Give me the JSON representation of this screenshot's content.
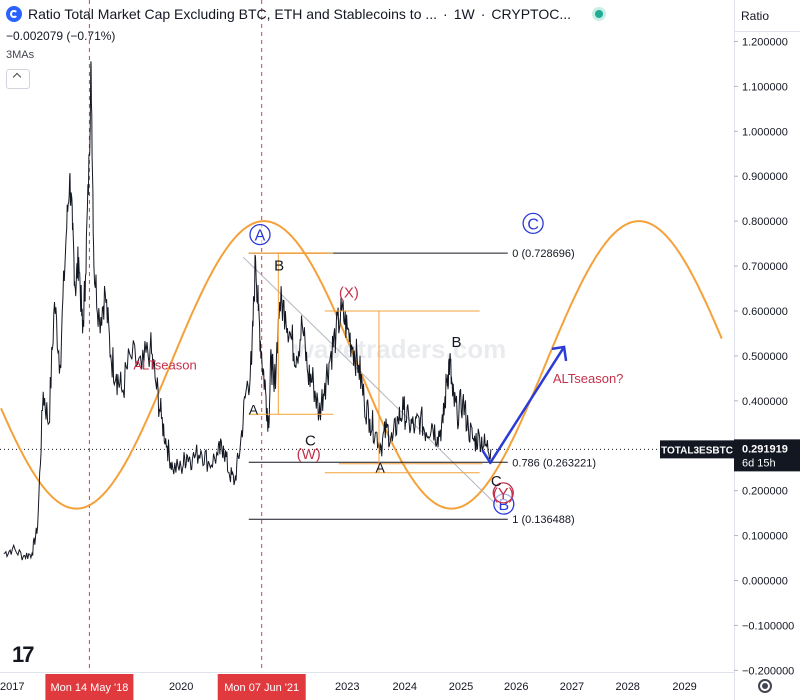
{
  "header": {
    "title": "Ratio Total Market Cap Excluding BTC, ETH and Stablecoins to ...",
    "interval": "1W",
    "exchange": "CRYPTOC...",
    "change": "−0.002079 (−0.71%)",
    "indicator": "3MAs",
    "scale_label": "Ratio"
  },
  "price_tag": {
    "symbol": "TOTAL3ESBTC",
    "value": "0.291919",
    "countdown": "6d 15h"
  },
  "watermark": "wavetraders.com",
  "labels": {
    "alt1": "ALTseason",
    "alt2": "ALTseason?",
    "A_circ": "A",
    "B_circ": "B",
    "C_circ": "C",
    "B": "B",
    "X": "(X)",
    "A1": "A",
    "C1": "C",
    "W": "(W)",
    "A2": "A",
    "B2": "B",
    "C2": "C",
    "Y": "(Y)"
  },
  "fib_levels": [
    {
      "label": "0 (0.728696)",
      "value": 0.728696
    },
    {
      "label": "0.786 (0.263221)",
      "value": 0.263221
    },
    {
      "label": "1 (0.136488)",
      "value": 0.136488
    }
  ],
  "chart_data": {
    "type": "line",
    "title": "Ratio Total Market Cap Excluding BTC, ETH and Stablecoins to ...",
    "xlabel": "",
    "ylabel": "",
    "ylim": [
      -0.2,
      1.25
    ],
    "xlim": [
      2016.8,
      2029.8
    ],
    "grid": false,
    "yticks": [
      "1.200000",
      "1.100000",
      "1.000000",
      "0.900000",
      "0.800000",
      "0.700000",
      "0.600000",
      "0.500000",
      "0.400000",
      "0.300000",
      "0.200000",
      "0.100000",
      "0.000000",
      "−0.100000",
      "−0.200000"
    ],
    "ytick_values": [
      1.2,
      1.1,
      1.0,
      0.9,
      0.8,
      0.7,
      0.6,
      0.5,
      0.4,
      0.3,
      0.2,
      0.1,
      0.0,
      -0.1,
      -0.2
    ],
    "xticks": [
      "2017",
      "2020",
      "2023",
      "2024",
      "2025",
      "2026",
      "2027",
      "2028",
      "2029"
    ],
    "xtick_values": [
      2017.0,
      2020.0,
      2022.95,
      2023.97,
      2024.97,
      2025.95,
      2026.94,
      2027.93,
      2028.94
    ],
    "highlighted_dates": [
      {
        "label": "Mon 14 May '18",
        "x": 2018.37
      },
      {
        "label": "Mon 07 Jun '21",
        "x": 2021.43
      }
    ],
    "last_value": 0.291919,
    "series": [
      {
        "color": "#131722",
        "points": [
          [
            2016.85,
            0.06
          ],
          [
            2017.0,
            0.07
          ],
          [
            2017.2,
            0.055
          ],
          [
            2017.35,
            0.06
          ],
          [
            2017.45,
            0.12
          ],
          [
            2017.55,
            0.42
          ],
          [
            2017.65,
            0.35
          ],
          [
            2017.75,
            0.62
          ],
          [
            2017.85,
            0.48
          ],
          [
            2017.95,
            0.75
          ],
          [
            2018.02,
            0.9
          ],
          [
            2018.07,
            0.78
          ],
          [
            2018.12,
            0.65
          ],
          [
            2018.18,
            0.72
          ],
          [
            2018.25,
            0.55
          ],
          [
            2018.3,
            0.68
          ],
          [
            2018.37,
            0.95
          ],
          [
            2018.4,
            1.15
          ],
          [
            2018.45,
            0.7
          ],
          [
            2018.55,
            0.58
          ],
          [
            2018.65,
            0.64
          ],
          [
            2018.75,
            0.5
          ],
          [
            2018.85,
            0.46
          ],
          [
            2018.95,
            0.42
          ],
          [
            2019.1,
            0.5
          ],
          [
            2019.3,
            0.47
          ],
          [
            2019.45,
            0.52
          ],
          [
            2019.55,
            0.44
          ],
          [
            2019.65,
            0.36
          ],
          [
            2019.75,
            0.3
          ],
          [
            2019.85,
            0.25
          ],
          [
            2020.0,
            0.25
          ],
          [
            2020.1,
            0.28
          ],
          [
            2020.2,
            0.27
          ],
          [
            2020.35,
            0.29
          ],
          [
            2020.5,
            0.26
          ],
          [
            2020.65,
            0.28
          ],
          [
            2020.75,
            0.3
          ],
          [
            2020.85,
            0.24
          ],
          [
            2020.95,
            0.22
          ],
          [
            2021.05,
            0.3
          ],
          [
            2021.15,
            0.42
          ],
          [
            2021.25,
            0.48
          ],
          [
            2021.32,
            0.72
          ],
          [
            2021.37,
            0.6
          ],
          [
            2021.43,
            0.5
          ],
          [
            2021.5,
            0.42
          ],
          [
            2021.55,
            0.35
          ],
          [
            2021.6,
            0.5
          ],
          [
            2021.65,
            0.42
          ],
          [
            2021.75,
            0.62
          ],
          [
            2021.85,
            0.6
          ],
          [
            2021.95,
            0.54
          ],
          [
            2022.05,
            0.5
          ],
          [
            2022.15,
            0.57
          ],
          [
            2022.25,
            0.46
          ],
          [
            2022.35,
            0.44
          ],
          [
            2022.45,
            0.37
          ],
          [
            2022.55,
            0.44
          ],
          [
            2022.65,
            0.5
          ],
          [
            2022.75,
            0.55
          ],
          [
            2022.85,
            0.6
          ],
          [
            2022.95,
            0.56
          ],
          [
            2023.05,
            0.52
          ],
          [
            2023.15,
            0.48
          ],
          [
            2023.25,
            0.4
          ],
          [
            2023.35,
            0.36
          ],
          [
            2023.45,
            0.33
          ],
          [
            2023.55,
            0.3
          ],
          [
            2023.65,
            0.34
          ],
          [
            2023.75,
            0.31
          ],
          [
            2023.85,
            0.36
          ],
          [
            2023.95,
            0.38
          ],
          [
            2024.05,
            0.35
          ],
          [
            2024.15,
            0.34
          ],
          [
            2024.25,
            0.36
          ],
          [
            2024.35,
            0.33
          ],
          [
            2024.45,
            0.35
          ],
          [
            2024.55,
            0.32
          ],
          [
            2024.65,
            0.35
          ],
          [
            2024.72,
            0.45
          ],
          [
            2024.77,
            0.49
          ],
          [
            2024.82,
            0.41
          ],
          [
            2024.9,
            0.37
          ],
          [
            2025.0,
            0.4
          ],
          [
            2025.1,
            0.34
          ],
          [
            2025.2,
            0.31
          ],
          [
            2025.3,
            0.32
          ],
          [
            2025.4,
            0.3
          ],
          [
            2025.5,
            0.292
          ]
        ]
      }
    ]
  }
}
